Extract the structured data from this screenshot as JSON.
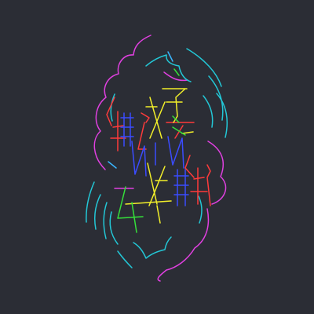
{
  "scene": {
    "background_color": "#2b2d35",
    "palette": {
      "magenta": "#e040e0",
      "cyan": "#23c7d6",
      "red": "#ff3b3b",
      "yellow": "#f2ef2a",
      "green": "#35e03a",
      "blue": "#3b4cff",
      "light_blue": "#3ab6ff"
    }
  }
}
